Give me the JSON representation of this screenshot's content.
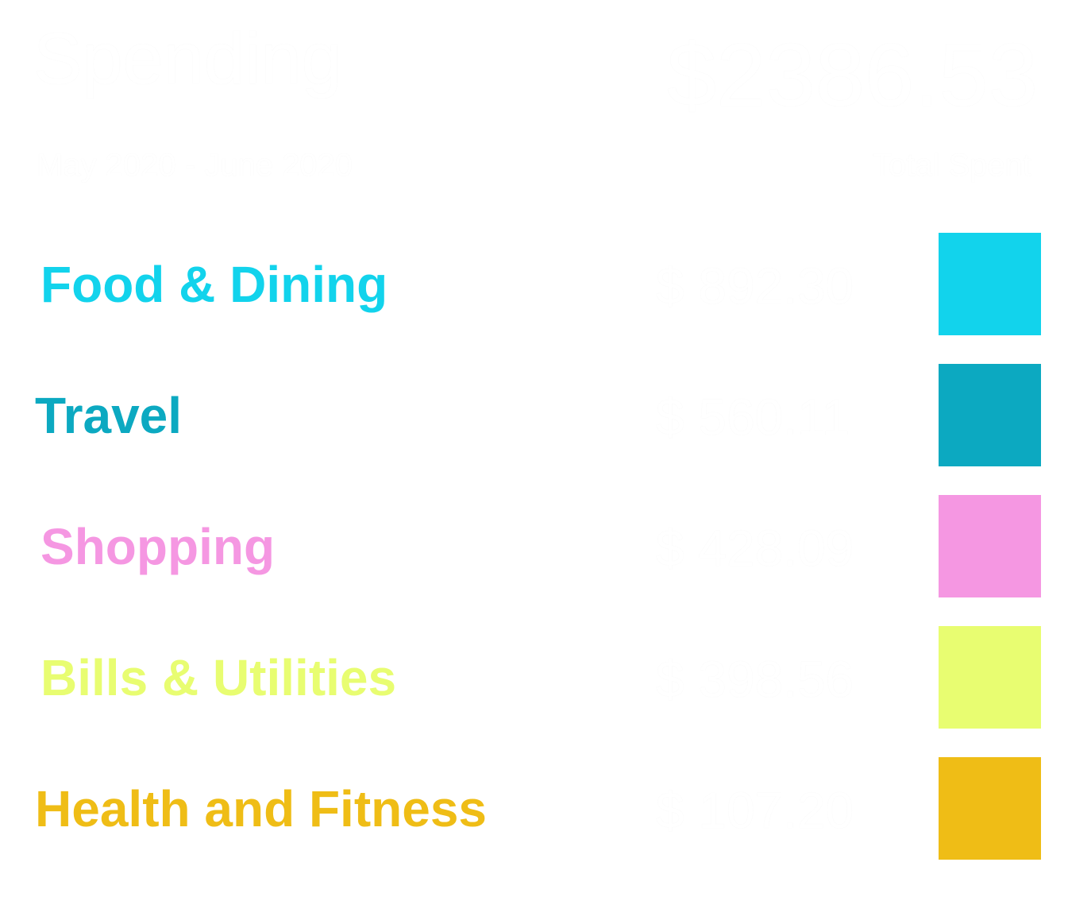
{
  "header": {
    "title": "Spending",
    "date_range": "May 2020 - June 2020",
    "total_amount": "$2386.53",
    "total_label": "Total Spent"
  },
  "categories": [
    {
      "label": "Food & Dining",
      "amount": "$ 892.30",
      "color": "#12d3ec"
    },
    {
      "label": "Travel",
      "amount": "$ 560.11",
      "color": "#0ca9c1"
    },
    {
      "label": "Shopping",
      "amount": "$ 428.09",
      "color": "#f597e2"
    },
    {
      "label": "Bills & Utilities",
      "amount": "$ 398.56",
      "color": "#e8fd71"
    },
    {
      "label": "Health and Fitness",
      "amount": "$ 107.20",
      "color": "#efbd16"
    }
  ]
}
